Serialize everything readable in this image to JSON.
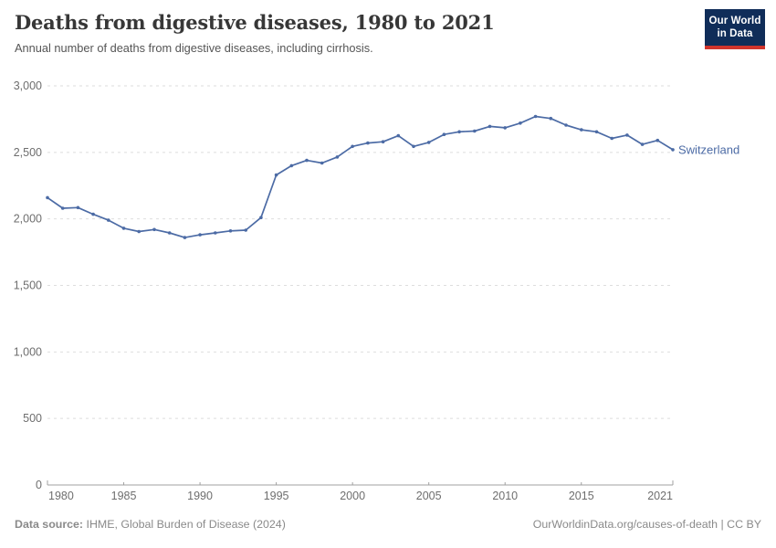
{
  "header": {
    "title": "Deaths from digestive diseases, 1980 to 2021",
    "subtitle": "Annual number of deaths from digestive diseases, including cirrhosis.",
    "logo_line1": "Our World",
    "logo_line2": "in Data",
    "logo_bg_color": "#102d59",
    "logo_accent_color": "#d0342c"
  },
  "chart_data": {
    "type": "line",
    "title": "Deaths from digestive diseases, 1980 to 2021",
    "xlabel": "",
    "ylabel": "",
    "xlim": [
      1980,
      2021
    ],
    "ylim": [
      0,
      3000
    ],
    "grid": "horizontal-dashed",
    "legend_position": "end-of-line-label",
    "x": [
      1980,
      1981,
      1982,
      1983,
      1984,
      1985,
      1986,
      1987,
      1988,
      1989,
      1990,
      1991,
      1992,
      1993,
      1994,
      1995,
      1996,
      1997,
      1998,
      1999,
      2000,
      2001,
      2002,
      2003,
      2004,
      2005,
      2006,
      2007,
      2008,
      2009,
      2010,
      2011,
      2012,
      2013,
      2014,
      2015,
      2016,
      2017,
      2018,
      2019,
      2020,
      2021
    ],
    "series": [
      {
        "name": "Switzerland",
        "color": "#4c6ba5",
        "values": [
          2160,
          2080,
          2085,
          2035,
          1990,
          1930,
          1905,
          1920,
          1895,
          1860,
          1880,
          1895,
          1910,
          1915,
          2010,
          2330,
          2400,
          2440,
          2420,
          2465,
          2545,
          2570,
          2580,
          2625,
          2545,
          2575,
          2635,
          2655,
          2660,
          2695,
          2685,
          2720,
          2770,
          2755,
          2705,
          2670,
          2655,
          2605,
          2630,
          2560,
          2590,
          2520
        ]
      }
    ],
    "x_tick_values": [
      1980,
      1985,
      1990,
      1995,
      2000,
      2005,
      2010,
      2015,
      2021
    ],
    "x_tick_labels": [
      "1980",
      "1985",
      "1990",
      "1995",
      "2000",
      "2005",
      "2010",
      "2015",
      "2021"
    ],
    "y_tick_values": [
      0,
      500,
      1000,
      1500,
      2000,
      2500,
      3000
    ],
    "y_tick_labels": [
      "0",
      "500",
      "1,000",
      "1,500",
      "2,000",
      "2,500",
      "3,000"
    ],
    "axis_color": "#a0a0a0",
    "gridline_color": "#dedede",
    "tick_label_color": "#6e6e6e",
    "end_label": "Switzerland"
  },
  "footer": {
    "source_label": "Data source:",
    "source_text": " IHME, Global Burden of Disease (2024)",
    "link_text": "OurWorldinData.org/causes-of-death | CC BY"
  }
}
